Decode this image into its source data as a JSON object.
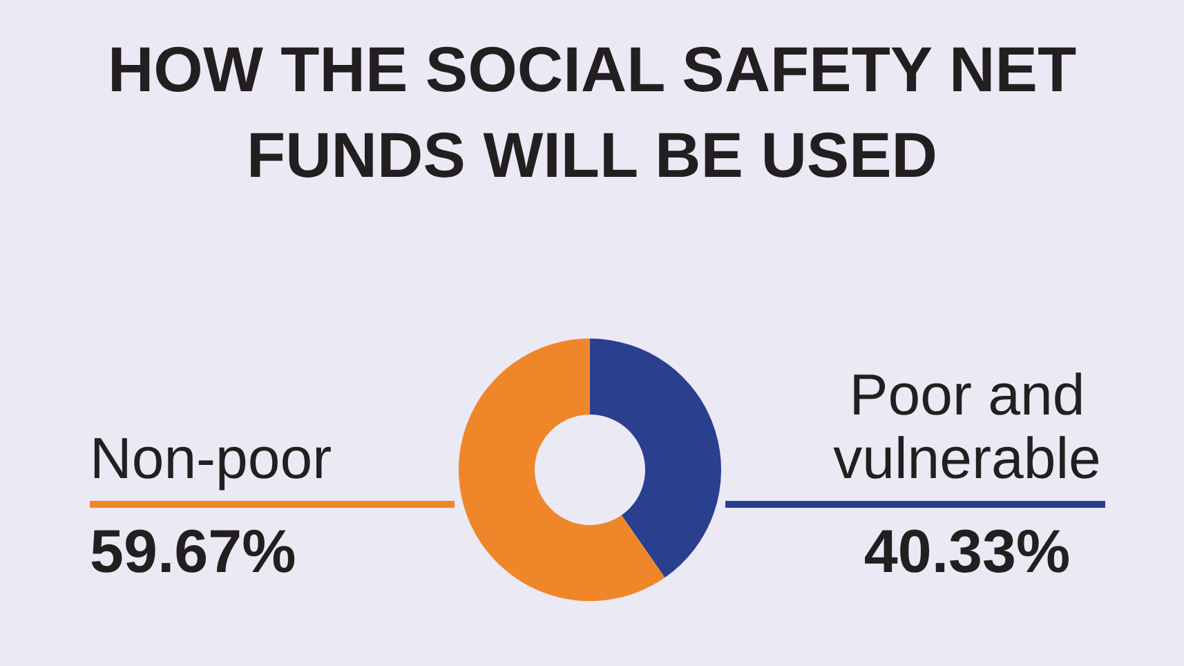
{
  "chart_data": {
    "type": "donut",
    "title": "HOW THE SOCIAL SAFETY NET FUNDS WILL BE USED",
    "categories": [
      "Poor and vulnerable",
      "Non-poor"
    ],
    "values": [
      40.33,
      59.67
    ],
    "colors": [
      "#2b3f8f",
      "#f0862a"
    ],
    "value_labels": [
      "40.33%",
      "59.67%"
    ]
  }
}
